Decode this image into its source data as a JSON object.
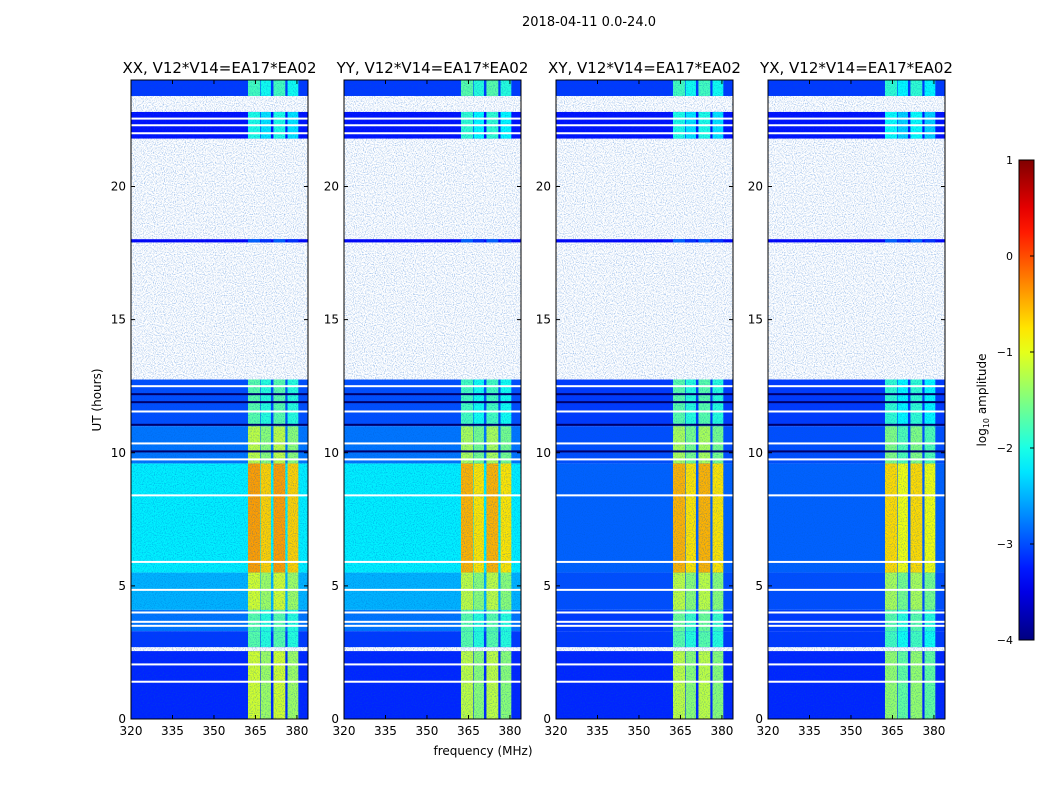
{
  "chart_data": {
    "type": "heatmap",
    "title": "2018-04-11 0.0-24.0",
    "xlabel": "frequency (MHz)",
    "ylabel": "UT (hours)",
    "xlim": [
      320,
      384
    ],
    "ylim": [
      0,
      24
    ],
    "xticks": [
      "320",
      "335",
      "350",
      "365",
      "380"
    ],
    "xtick_values": [
      320,
      335,
      350,
      365,
      380
    ],
    "yticks": [
      "0",
      "5",
      "10",
      "15",
      "20"
    ],
    "ytick_values": [
      0,
      5,
      10,
      15,
      20
    ],
    "colorbar": {
      "label_prefix": "log",
      "label_sub": "10",
      "label_suffix": " amplitude",
      "range": [
        -4,
        1
      ],
      "colormap": "jet",
      "ticks": [
        "1",
        "0",
        "−1",
        "−2",
        "−3",
        "−4"
      ],
      "tick_values": [
        1,
        0,
        -1,
        -2,
        -3,
        -4
      ]
    },
    "panels": [
      {
        "title": "XX, V12*V14=EA17*EA02"
      },
      {
        "title": "YY, V12*V14=EA17*EA02"
      },
      {
        "title": "XY, V12*V14=EA17*EA02"
      },
      {
        "title": "YX, V12*V14=EA17*EA02"
      }
    ],
    "signal_bands_mhz": [
      [
        362.3,
        366.7
      ],
      [
        366.9,
        370.6
      ],
      [
        371.5,
        375.8
      ],
      [
        376.6,
        380.5
      ]
    ],
    "time_blocks": [
      {
        "t": [
          0,
          2.55
        ],
        "base": [
          -3.2,
          -3.2,
          -3.2,
          -3.2
        ],
        "band": [
          -1.2,
          -1.3,
          -1.3,
          -1.5
        ]
      },
      {
        "t": [
          2.7,
          3.3
        ],
        "base": [
          -3.1,
          -3.1,
          -3.1,
          -3.1
        ],
        "band": [
          -1.8,
          -1.8,
          -1.8,
          -1.9
        ]
      },
      {
        "t": [
          3.3,
          4.1
        ],
        "base": [
          -2.8,
          -2.8,
          -3.1,
          -3.1
        ],
        "band": [
          -1.8,
          -1.8,
          -1.7,
          -1.8
        ]
      },
      {
        "t": [
          4.1,
          5.5
        ],
        "base": [
          -2.5,
          -2.5,
          -3.0,
          -3.0
        ],
        "band": [
          -1.2,
          -1.3,
          -1.3,
          -1.4
        ]
      },
      {
        "t": [
          5.5,
          9.6
        ],
        "base": [
          -2.2,
          -2.2,
          -2.9,
          -2.9
        ],
        "band": [
          -0.5,
          -0.6,
          -0.6,
          -0.8
        ]
      },
      {
        "t": [
          9.6,
          11.0
        ],
        "base": [
          -2.8,
          -2.8,
          -3.0,
          -3.0
        ],
        "band": [
          -1.3,
          -1.4,
          -1.4,
          -1.6
        ]
      },
      {
        "t": [
          11.0,
          12.75
        ],
        "base": [
          -3.0,
          -3.0,
          -3.1,
          -3.1
        ],
        "band": [
          -1.8,
          -1.9,
          -1.8,
          -2.0
        ]
      },
      {
        "t": [
          17.9,
          18.02
        ],
        "base": [
          -3.4,
          -3.4,
          -3.4,
          -3.4
        ],
        "band": [
          -3.0,
          -3.0,
          -3.0,
          -3.0
        ]
      },
      {
        "t": [
          21.8,
          22.8
        ],
        "base": [
          -3.3,
          -3.3,
          -3.3,
          -3.3
        ],
        "band": [
          -2.1,
          -2.0,
          -2.1,
          -2.2
        ]
      },
      {
        "t": [
          23.4,
          24.0
        ],
        "base": [
          -3.1,
          -3.1,
          -3.1,
          -3.1
        ],
        "band": [
          -1.9,
          -1.8,
          -1.9,
          -2.0
        ]
      }
    ],
    "flagged_hours": [
      1.4,
      2.05,
      3.5,
      3.65,
      4.0,
      4.85,
      5.9,
      8.4,
      9.75,
      10.35,
      11.55,
      12.5,
      22.0,
      22.3,
      22.55
    ],
    "low_hours": [
      10.05,
      11.05,
      11.9,
      12.2
    ]
  }
}
